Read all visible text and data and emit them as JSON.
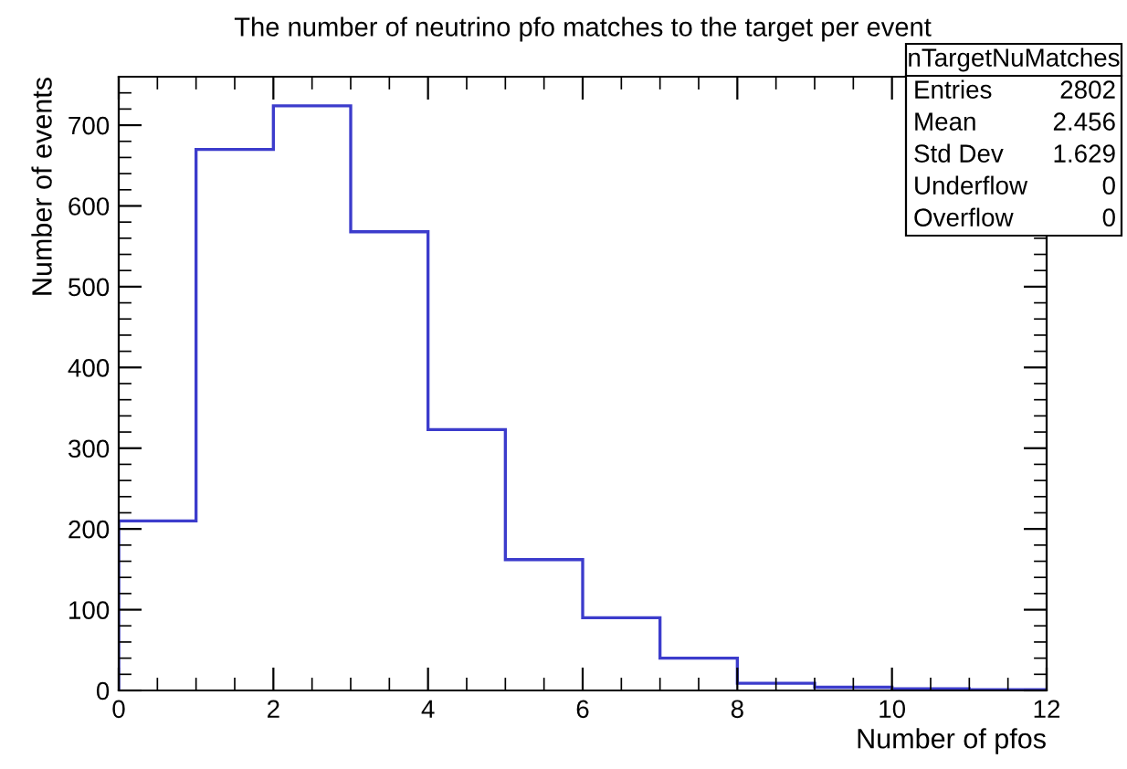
{
  "chart_data": {
    "type": "histogram",
    "title": "The number of neutrino pfo matches to the target per event",
    "xlabel": "Number of pfos",
    "ylabel": "Number of events",
    "bins": [
      0,
      1,
      2,
      3,
      4,
      5,
      6,
      7,
      8,
      9,
      10,
      11,
      12
    ],
    "values": [
      210,
      670,
      724,
      568,
      323,
      162,
      90,
      40,
      9,
      4,
      2,
      1
    ],
    "color": "#3c3ccc",
    "xlim": [
      0,
      12
    ],
    "xticks": [
      0,
      2,
      4,
      6,
      8,
      10,
      12
    ],
    "ylim": [
      0,
      760
    ],
    "yticks": [
      0,
      100,
      200,
      300,
      400,
      500,
      600,
      700
    ],
    "grid": false,
    "annotations": [
      "nTargetNuMatches",
      "Entries",
      "2802",
      "Mean",
      "2.456",
      "Std Dev",
      "1.629",
      "Underflow",
      "0",
      "Overflow",
      "0"
    ]
  }
}
